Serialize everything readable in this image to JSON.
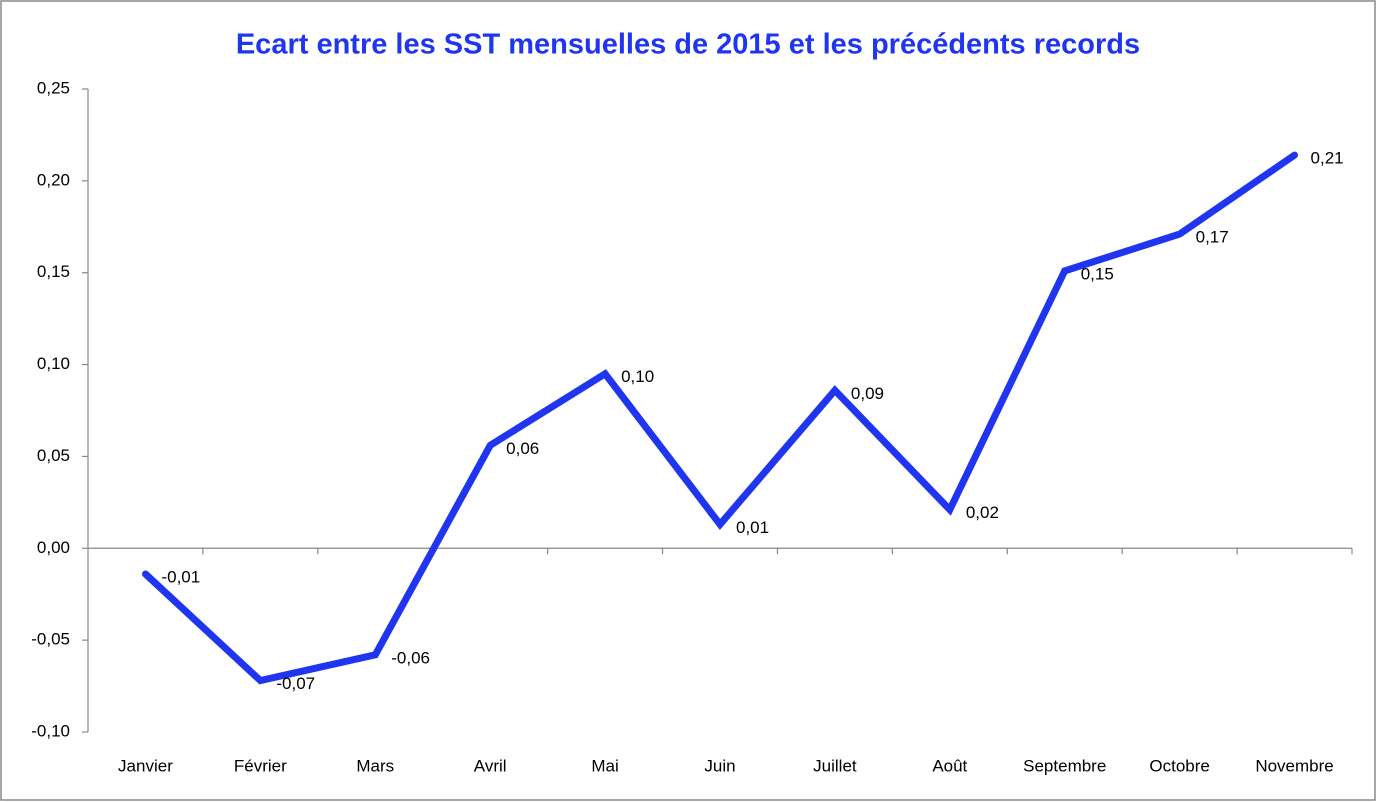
{
  "chart_data": {
    "type": "line",
    "title": "Ecart entre les SST mensuelles de 2015 et les précédents records",
    "categories": [
      "Janvier",
      "Février",
      "Mars",
      "Avril",
      "Mai",
      "Juin",
      "Juillet",
      "Août",
      "Septembre",
      "Octobre",
      "Novembre"
    ],
    "series": [
      {
        "name": "Ecart",
        "color": "#1f35f0",
        "values": [
          -0.014,
          -0.072,
          -0.058,
          0.056,
          0.095,
          0.013,
          0.086,
          0.021,
          0.151,
          0.171,
          0.214
        ],
        "value_labels": [
          "-0,01",
          "-0,07",
          "-0,06",
          "0,06",
          "0,10",
          "0,01",
          "0,09",
          "0,02",
          "0,15",
          "0,17",
          "0,21"
        ]
      }
    ],
    "ylim": [
      -0.1,
      0.25
    ],
    "yticks": [
      {
        "value": -0.1,
        "label": "-0,10"
      },
      {
        "value": -0.05,
        "label": "-0,05"
      },
      {
        "value": 0,
        "label": "0,00"
      },
      {
        "value": 0.05,
        "label": "0,05"
      },
      {
        "value": 0.1,
        "label": "0,10"
      },
      {
        "value": 0.15,
        "label": "0,15"
      },
      {
        "value": 0.2,
        "label": "0,20"
      },
      {
        "value": 0.25,
        "label": "0,25"
      }
    ],
    "grid": false
  }
}
